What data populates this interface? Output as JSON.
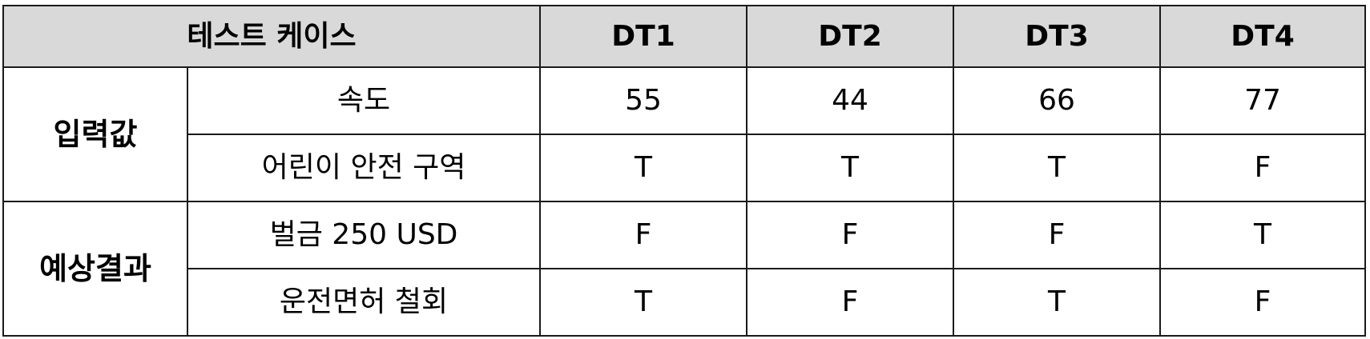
{
  "table": {
    "header": {
      "test_case_label": "테스트 케이스",
      "columns": [
        "DT1",
        "DT2",
        "DT3",
        "DT4"
      ]
    },
    "groups": [
      {
        "label": "입력값",
        "rows": [
          {
            "label": "속도",
            "values": [
              "55",
              "44",
              "66",
              "77"
            ]
          },
          {
            "label": "어린이 안전 구역",
            "values": [
              "T",
              "T",
              "T",
              "F"
            ]
          }
        ]
      },
      {
        "label": "예상결과",
        "rows": [
          {
            "label": "벌금 250 USD",
            "values": [
              "F",
              "F",
              "F",
              "T"
            ]
          },
          {
            "label": "운전면허 철회",
            "values": [
              "T",
              "F",
              "T",
              "F"
            ]
          }
        ]
      }
    ],
    "colors": {
      "header_background": "#d9d9d9",
      "border": "#1a1a1a"
    }
  }
}
